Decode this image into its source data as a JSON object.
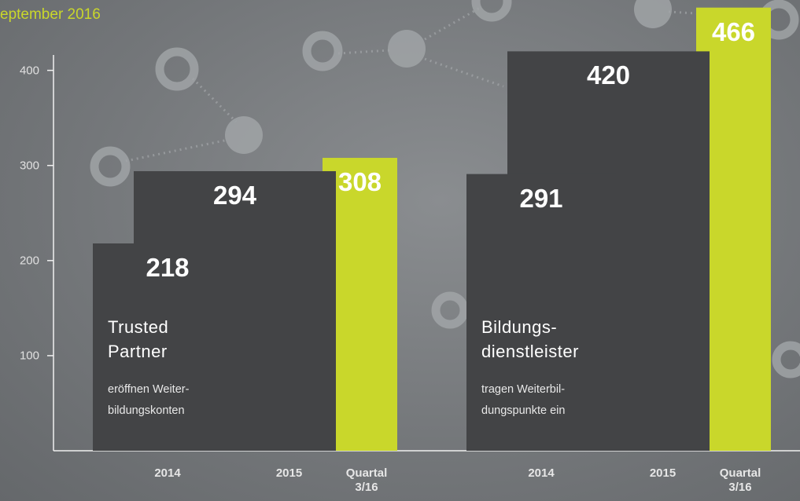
{
  "chart_data": {
    "type": "bar",
    "title": "eptember 2016",
    "groups": [
      {
        "label_lines": [
          "Trusted",
          "Partner"
        ],
        "description_lines": [
          "eröffnen Weiter-",
          "bildungskonten"
        ]
      },
      {
        "label_lines": [
          "Bildungs-",
          "dienstleister"
        ],
        "description_lines": [
          "tragen Weiterbil-",
          "dungspunkte ein"
        ]
      }
    ],
    "series": [
      {
        "name": "2014",
        "color": "#434446",
        "values": [
          218,
          291
        ]
      },
      {
        "name": "2015",
        "color": "#434446",
        "values": [
          294,
          420
        ]
      },
      {
        "name": "Quartal 3/16",
        "color": "#c9d72b",
        "values": [
          308,
          466
        ]
      }
    ],
    "ylim": [
      0,
      474
    ],
    "yticks": [
      100,
      200,
      300,
      400
    ]
  }
}
